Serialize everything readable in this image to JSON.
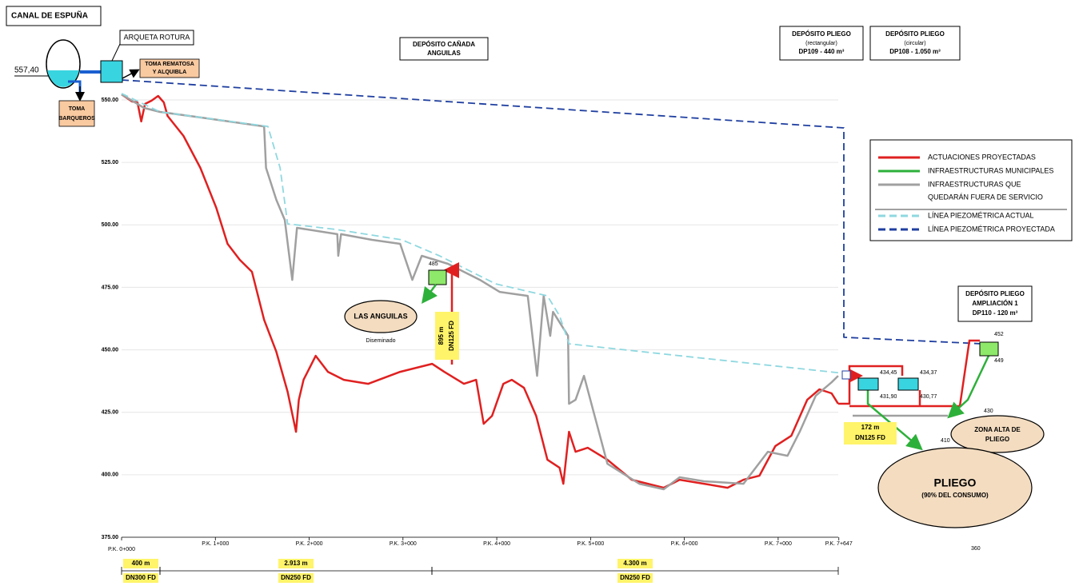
{
  "chart_data": {
    "type": "line",
    "xlim": [
      0,
      10.25
    ],
    "ylim": [
      375,
      550
    ],
    "grid": true,
    "xticks": [
      {
        "value": 0,
        "label": "P.K. 0+000"
      },
      {
        "value": 1,
        "label": "P.K. 1+000"
      },
      {
        "value": 2,
        "label": "P.K. 2+000"
      },
      {
        "value": 3,
        "label": "P.K. 3+000"
      },
      {
        "value": 4,
        "label": "P.K. 4+000"
      },
      {
        "value": 5,
        "label": "P.K. 5+000"
      },
      {
        "value": 6,
        "label": "P.K. 6+000"
      },
      {
        "value": 7,
        "label": "P.K. 7+000"
      },
      {
        "value": 7.647,
        "label": "P.K. 7+647"
      }
    ],
    "yticks": [
      {
        "value": 375,
        "label": "375.00"
      },
      {
        "value": 400,
        "label": "400.00"
      },
      {
        "value": 425,
        "label": "425.00"
      },
      {
        "value": 450,
        "label": "450.00"
      },
      {
        "value": 475,
        "label": "475.00"
      },
      {
        "value": 500,
        "label": "500.00"
      },
      {
        "value": 525,
        "label": "525.00"
      },
      {
        "value": 550,
        "label": "550.00"
      }
    ],
    "series": [
      {
        "color": "#e02020",
        "dash": false,
        "x": [
          0,
          0.11,
          0.17,
          0.21,
          0.25,
          0.32,
          0.39,
          0.45,
          0.49,
          0.66,
          0.84,
          1.01,
          1.13,
          1.26,
          1.39,
          1.52,
          1.65,
          1.77,
          1.86,
          1.89,
          1.94,
          2.07,
          2.2,
          2.37,
          2.63,
          2.97,
          3.31,
          3.44,
          3.65,
          3.78,
          3.86,
          3.95,
          4.07,
          4.16,
          4.29,
          4.42,
          4.54,
          4.67,
          4.71,
          4.77,
          4.84,
          4.97,
          5.18,
          5.44,
          5.78,
          5.95,
          6.21,
          6.46,
          6.63,
          6.8,
          6.97,
          7.14,
          7.31,
          7.44,
          7.57,
          7.64
        ],
        "values": [
          552.2,
          549.4,
          549,
          541.4,
          548.4,
          549.7,
          551.6,
          549,
          543.6,
          535.6,
          522.8,
          506.8,
          492.4,
          486,
          481.2,
          462,
          449.2,
          433.2,
          417.2,
          430,
          438,
          447.6,
          441.2,
          438,
          436.4,
          441.2,
          444.4,
          441.2,
          436.4,
          438,
          420.4,
          423.6,
          436.4,
          438,
          434.8,
          423.6,
          406,
          402.8,
          396.4,
          417.2,
          409.2,
          410.8,
          406,
          398,
          394.8,
          398,
          396.4,
          394.8,
          398,
          399.6,
          411.5,
          415.6,
          430,
          434.2,
          432.6,
          428.4
        ]
      },
      {
        "color": "#a0a0a0",
        "dash": false,
        "x": [
          0,
          0.24,
          0.41,
          0.84,
          1.52,
          1.54,
          1.65,
          1.74,
          1.82,
          1.87,
          2.3,
          2.31,
          2.34,
          2.67,
          2.97,
          3.1,
          3.2,
          3.48,
          3.82,
          4.03,
          4.33,
          4.43,
          4.5,
          4.57,
          4.6,
          4.76,
          4.77,
          4.84,
          4.93,
          5.18,
          5.52,
          5.78,
          5.95,
          6.21,
          6.63,
          6.89,
          7.1,
          7.23,
          7.4,
          7.57,
          7.64
        ],
        "values": [
          552.2,
          546.8,
          545.2,
          543,
          539.4,
          522.8,
          510,
          502,
          478,
          498.8,
          496.3,
          487.6,
          496.3,
          494,
          492.4,
          478,
          487.6,
          484.4,
          478,
          473.2,
          471.6,
          439.6,
          471.6,
          455.6,
          465.2,
          455.6,
          428.4,
          430,
          439.6,
          404.4,
          396.4,
          394.2,
          399,
          397.4,
          396.4,
          409.2,
          407.6,
          417.2,
          431.6,
          437,
          439.6
        ]
      },
      {
        "color": "#8fd8e0",
        "dash": true,
        "x": [
          0,
          0.41,
          1.56,
          1.69,
          1.77,
          2.28,
          2.99,
          3.39,
          3.99,
          4.54,
          4.67,
          4.77,
          7.7
        ],
        "values": [
          552.6,
          545.2,
          539.4,
          522.8,
          500.4,
          498.2,
          494,
          487.6,
          476.4,
          471.6,
          463.6,
          452.4,
          440.6
        ]
      },
      {
        "color": "#1f3fa0",
        "dash": true,
        "x": [
          0,
          7.7,
          7.7,
          9.19
        ],
        "values": [
          558,
          538.8,
          455,
          452.4
        ]
      }
    ],
    "legend": [
      {
        "lines": [
          "ACTUACIONES PROYECTADAS"
        ],
        "color": "#e02020",
        "dash": false
      },
      {
        "lines": [
          "INFRAESTRUCTURAS MUNICIPALES"
        ],
        "color": "#2db03a",
        "dash": false
      },
      {
        "lines": [
          "INFRAESTRUCTURAS  QUE",
          "QUEDARÁN FUERA DE SERVICIO"
        ],
        "color": "#a0a0a0",
        "dash": false
      },
      {
        "lines": [
          "LÍNEA PIEZOMÉTRICA ACTUAL"
        ],
        "color": "#8fd8e0",
        "dash": true
      },
      {
        "lines": [
          "LÍNEA PIEZOMÉTRICA PROYECTADA"
        ],
        "color": "#1f3fa0",
        "dash": true
      }
    ],
    "dimensions": [
      {
        "length": "400 m",
        "pipe": "DN300 FD"
      },
      {
        "length": "2.913 m",
        "pipe": "DN250 FD"
      },
      {
        "length": "4.300 m",
        "pipe": "DN250 FD"
      }
    ]
  },
  "annotations": {
    "canal": "CANAL DE ESPUÑA",
    "level_canal": "557,40",
    "toma_barqueros": [
      "TOMA",
      "BARQUEROS"
    ],
    "arqueta": "ARQUETA ROTURA",
    "toma_rematosa": [
      "TOMA REMATOSA",
      "Y ALQUIBLA"
    ],
    "dep_canada": [
      "DEPÓSITO CAÑADA",
      "ANGUILAS"
    ],
    "dep_dp109": [
      "DEPÓSITO  PLIEGO",
      "(rectangular)",
      "DP109 - 440 m³"
    ],
    "dep_dp108": [
      "DEPÓSITO  PLIEGO",
      "(circular)",
      "DP108 - 1.050 m³"
    ],
    "dep_dp110": [
      "DEPÓSITO PLIEGO",
      "AMPLIACIÓN 1",
      "DP110 - 120 m³"
    ],
    "las_anguilas": "LAS ANGUILAS",
    "diseminado": "Diseminado",
    "pipe_anguilas": [
      "895 m",
      "DN125 FD"
    ],
    "pipe_pliego": [
      "172 m",
      "DN125 FD"
    ],
    "zona_alta": [
      "ZONA ALTA DE",
      "PLIEGO"
    ],
    "pliego": "PLIEGO",
    "pliego_sub": "(90% DEL CONSUMO)",
    "levels": [
      "485",
      "452",
      "449",
      "434,45",
      "431,90",
      "434,37",
      "430,77",
      "430",
      "410",
      "360"
    ]
  }
}
